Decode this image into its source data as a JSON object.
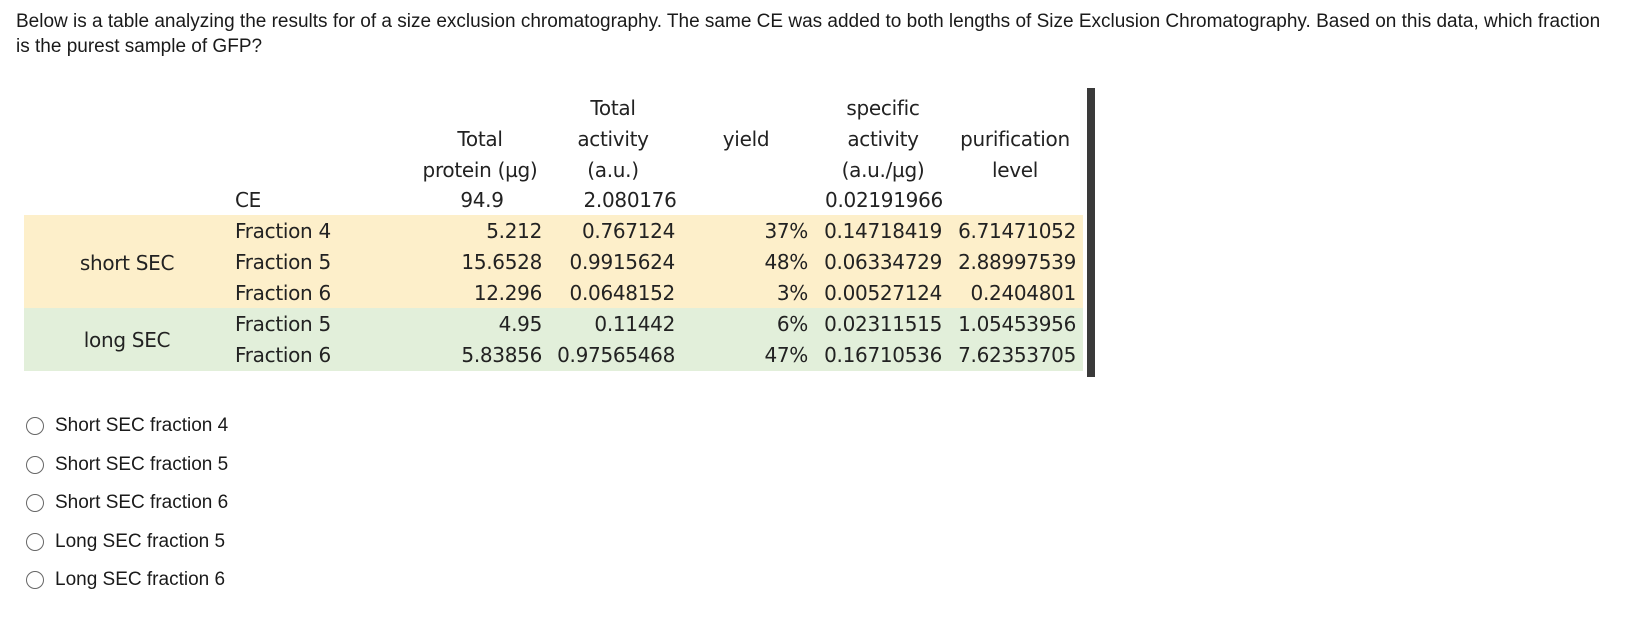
{
  "question": "Below is a table analyzing the results for of a size exclusion chromatography. The same CE was added to both lengths of Size Exclusion Chromatography. Based on this data, which fraction is the purest sample of GFP?",
  "table": {
    "headers": {
      "protein": [
        "Total",
        "protein (µg)"
      ],
      "activity": [
        "Total",
        "activity",
        "(a.u.)"
      ],
      "yield": [
        "yield"
      ],
      "specific_activity": [
        "specific",
        "activity",
        "(a.u./µg)"
      ],
      "purification": [
        "purification",
        "level"
      ]
    },
    "ce": {
      "label": "CE",
      "protein": "94.9",
      "activity": "2.080176",
      "specific_activity": "0.02191966"
    },
    "groups": [
      {
        "name": "short SEC",
        "rows": [
          {
            "label": "Fraction 4",
            "protein": "5.212",
            "activity": "0.767124",
            "yield": "37%",
            "specific_activity": "0.14718419",
            "purification": "6.71471052"
          },
          {
            "label": "Fraction 5",
            "protein": "15.6528",
            "activity": "0.9915624",
            "yield": "48%",
            "specific_activity": "0.06334729",
            "purification": "2.88997539"
          },
          {
            "label": "Fraction 6",
            "protein": "12.296",
            "activity": "0.0648152",
            "yield": "3%",
            "specific_activity": "0.00527124",
            "purification": "0.2404801"
          }
        ]
      },
      {
        "name": "long SEC",
        "rows": [
          {
            "label": "Fraction 5",
            "protein": "4.95",
            "activity": "0.11442",
            "yield": "6%",
            "specific_activity": "0.02311515",
            "purification": "1.05453956"
          },
          {
            "label": "Fraction 6",
            "protein": "5.83856",
            "activity": "0.97565468",
            "yield": "47%",
            "specific_activity": "0.16710536",
            "purification": "7.62353705"
          }
        ]
      }
    ]
  },
  "options": [
    "Short SEC fraction 4",
    "Short SEC fraction 5",
    "Short SEC fraction 6",
    "Long SEC fraction 5",
    "Long SEC fraction 6"
  ]
}
